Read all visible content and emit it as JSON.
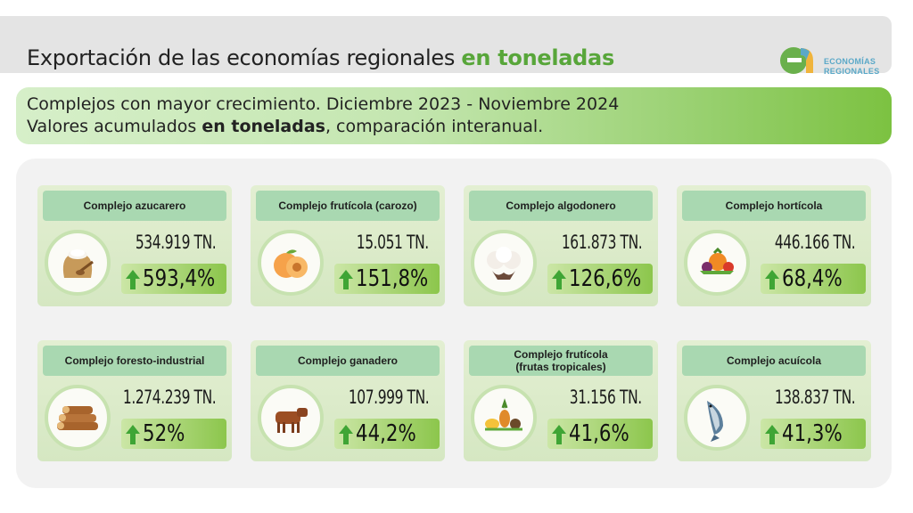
{
  "header": {
    "title_main": "Exportación de las economías regionales ",
    "title_highlight": "en toneladas",
    "logo_text_line1": "ECONOMÍAS",
    "logo_text_line2": "REGIONALES"
  },
  "subtitle": {
    "line1": "Complejos con mayor crecimiento. Diciembre 2023 - Noviembre 2024",
    "line2_pre": "Valores acumulados ",
    "line2_bold": "en toneladas",
    "line2_post": ", comparación interanual."
  },
  "colors": {
    "accent_green": "#58a63a",
    "card_title_bg": "#a9d8b1",
    "arrow_green": "#3fa535"
  },
  "cards": [
    {
      "title": "Complejo azucarero",
      "value": "534.919 TN.",
      "change": "593,4%",
      "icon": "sugar-sack-icon"
    },
    {
      "title": "Complejo frutícola (carozo)",
      "value": "15.051 TN.",
      "change": "151,8%",
      "icon": "peach-icon"
    },
    {
      "title": "Complejo algodonero",
      "value": "161.873 TN.",
      "change": "126,6%",
      "icon": "cotton-icon"
    },
    {
      "title": "Complejo hortícola",
      "value": "446.166 TN.",
      "change": "68,4%",
      "icon": "vegetables-icon"
    },
    {
      "title": "Complejo foresto-industrial",
      "value": "1.274.239 TN.",
      "change": "52%",
      "icon": "logs-icon"
    },
    {
      "title": "Complejo ganadero",
      "value": "107.999 TN.",
      "change": "44,2%",
      "icon": "cow-icon"
    },
    {
      "title": "Complejo frutícola\n(frutas tropicales)",
      "value": "31.156 TN.",
      "change": "41,6%",
      "icon": "tropical-fruits-icon"
    },
    {
      "title": "Complejo acuícola",
      "value": "138.837 TN.",
      "change": "41,3%",
      "icon": "fish-icon"
    }
  ]
}
